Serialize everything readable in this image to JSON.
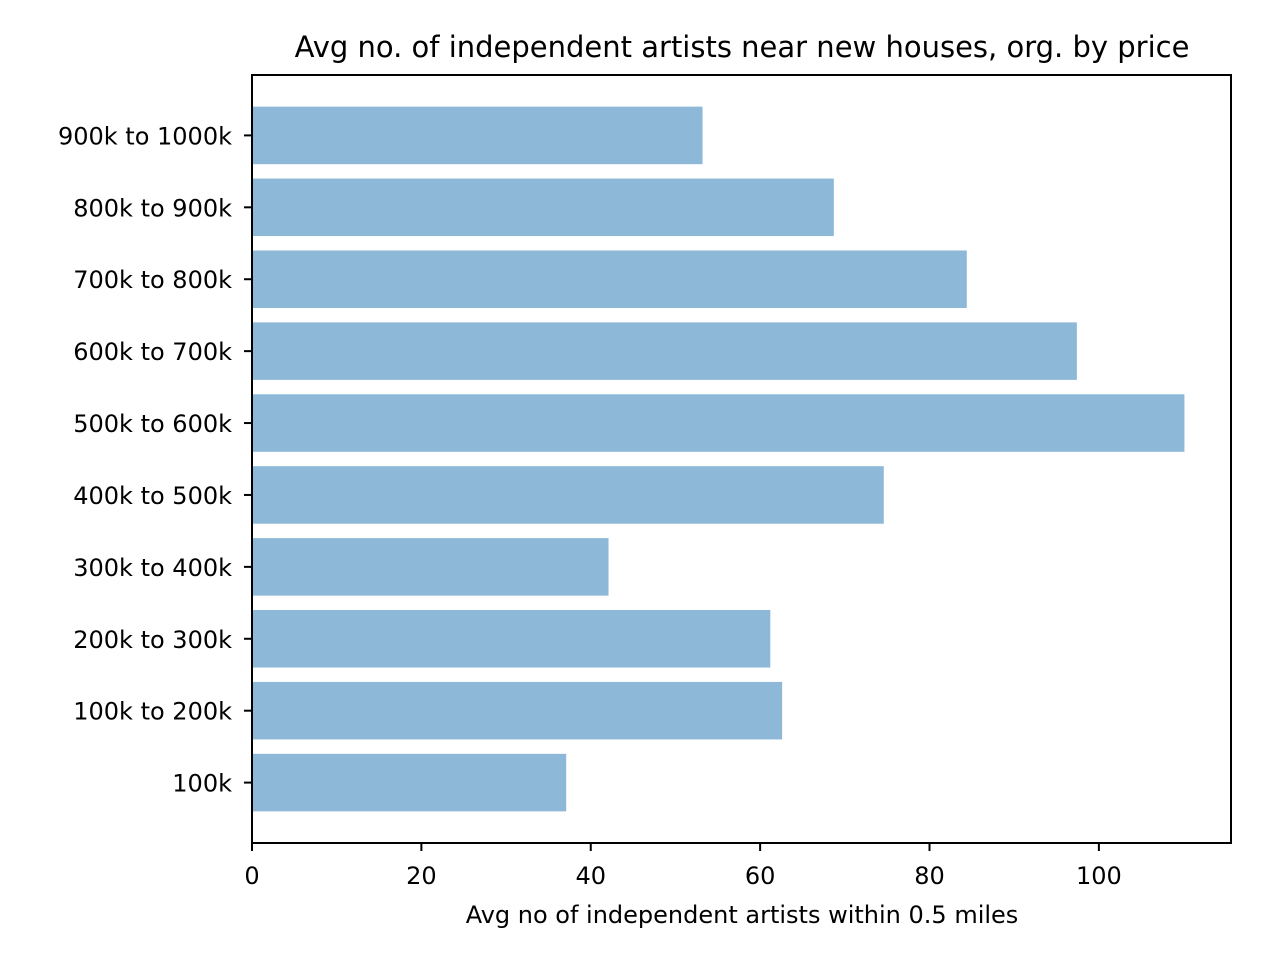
{
  "chart_data": {
    "type": "bar",
    "orientation": "horizontal",
    "title": "Avg no. of independent artists near new houses, org. by price",
    "xlabel": "Avg no of independent artists within 0.5 miles",
    "ylabel": "",
    "categories": [
      "100k",
      "100k to 200k",
      "200k to 300k",
      "300k to 400k",
      "400k to 500k",
      "500k to 600k",
      "600k to 700k",
      "700k to 800k",
      "800k to 900k",
      "900k to 1000k"
    ],
    "values": [
      37.1,
      62.6,
      61.2,
      42.1,
      74.6,
      110.1,
      97.4,
      84.4,
      68.7,
      53.2
    ],
    "xlim": [
      0,
      115.6
    ],
    "xticks": [
      0,
      20,
      40,
      60,
      80,
      100
    ],
    "grid": false,
    "legend": "none",
    "bar_color": "#8db8d8"
  }
}
